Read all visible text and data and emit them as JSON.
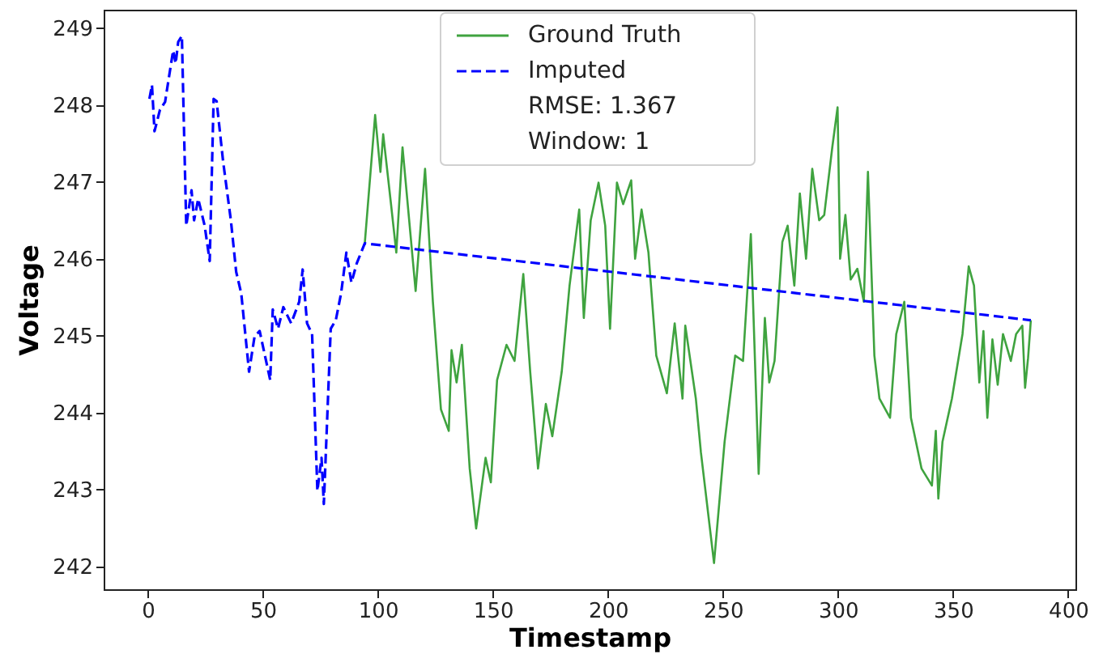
{
  "chart_data": {
    "type": "line",
    "xlabel": "Timestamp",
    "ylabel": "Voltage",
    "xlim": [
      -19.2,
      403.2
    ],
    "ylim": [
      241.7,
      249.24
    ],
    "xticks": [
      0,
      50,
      100,
      150,
      200,
      250,
      300,
      350,
      400
    ],
    "yticks": [
      242,
      243,
      244,
      245,
      246,
      247,
      248,
      249
    ],
    "legend": "top",
    "annotations": [
      "RMSE: 1.367",
      "Window: 1"
    ],
    "series": [
      {
        "name": "Ground Truth",
        "color": "#3fa33f",
        "line_style": "solid",
        "x": [
          94.3,
          98.8,
          101.1,
          102.3,
          105.7,
          108,
          110.7,
          116.4,
          120.5,
          123.9,
          127.4,
          130.8,
          132,
          134.2,
          136.5,
          139.9,
          142.7,
          146.8,
          149.1,
          151.8,
          155.9,
          159.4,
          163.2,
          166.2,
          169.6,
          173,
          175.8,
          179.9,
          183.3,
          187.5,
          189.5,
          192.5,
          195.9,
          198.8,
          200.9,
          203.9,
          206.6,
          210.1,
          211.8,
          214.6,
          217.6,
          221,
          225.6,
          229,
          232.4,
          233.6,
          238.2,
          240.4,
          246.1,
          250.7,
          255.3,
          258.7,
          262.1,
          265.5,
          268.2,
          270.1,
          272.4,
          275.8,
          278.1,
          281,
          283.4,
          286.1,
          288.8,
          291.8,
          294,
          297.5,
          299.8,
          300.9,
          303.2,
          305.5,
          308.4,
          311.2,
          313,
          315.8,
          318,
          322.6,
          325.3,
          328.8,
          331.7,
          336.3,
          340.8,
          342.5,
          343.6,
          345.4,
          349.5,
          354.1,
          356.8,
          359.1,
          361.4,
          363.2,
          364.9,
          367.1,
          369.4,
          371.7,
          375.1,
          377.4,
          380.1,
          381.3,
          382.6,
          383.8
        ],
        "values": [
          246.2,
          247.87,
          247.13,
          247.62,
          246.71,
          246.08,
          247.45,
          245.58,
          247.17,
          245.44,
          244.04,
          243.76,
          244.81,
          244.39,
          244.88,
          243.27,
          242.49,
          243.41,
          243.09,
          244.42,
          244.88,
          244.67,
          245.8,
          244.53,
          243.27,
          244.11,
          243.69,
          244.53,
          245.65,
          246.64,
          245.23,
          246.5,
          246.99,
          246.43,
          245.09,
          246.99,
          246.71,
          247.02,
          246.0,
          246.64,
          246.08,
          244.74,
          244.25,
          245.16,
          244.18,
          245.13,
          244.18,
          243.48,
          242.04,
          243.62,
          244.74,
          244.67,
          246.32,
          243.2,
          245.23,
          244.39,
          244.67,
          246.22,
          246.43,
          245.65,
          246.85,
          246.0,
          247.17,
          246.5,
          246.57,
          247.45,
          247.97,
          246.0,
          246.57,
          245.73,
          245.87,
          245.44,
          247.13,
          244.74,
          244.18,
          243.93,
          245.02,
          245.44,
          243.93,
          243.27,
          243.05,
          243.76,
          242.88,
          243.62,
          244.18,
          245.02,
          245.9,
          245.65,
          244.39,
          245.06,
          243.93,
          244.95,
          244.36,
          245.02,
          244.67,
          245.02,
          245.13,
          244.32,
          244.71,
          245.2
        ]
      },
      {
        "name": "Imputed",
        "color": "#0000ff",
        "line_style": "dashed",
        "x": [
          0.7,
          1.8,
          2.9,
          5.3,
          7.5,
          11,
          12.1,
          13.2,
          14.8,
          15.5,
          16.7,
          19,
          20.1,
          21.9,
          24.7,
          26.9,
          28.6,
          29.9,
          32.7,
          36.1,
          38.4,
          40.6,
          44,
          46.4,
          48.6,
          50.9,
          53.2,
          54.3,
          56.6,
          58.9,
          62.3,
          65.8,
          67.3,
          69.2,
          71.4,
          73.7,
          75.5,
          76.5,
          79.5,
          81.7,
          84,
          86.3,
          88.5,
          90.8,
          94.3,
          383.8
        ],
        "values": [
          248.08,
          248.26,
          247.66,
          247.94,
          248.04,
          248.71,
          248.54,
          248.82,
          248.9,
          247.97,
          246.43,
          246.89,
          246.5,
          246.78,
          246.43,
          245.97,
          248.08,
          248.05,
          247.27,
          246.5,
          245.83,
          245.55,
          244.53,
          244.99,
          245.06,
          244.74,
          244.42,
          245.34,
          245.09,
          245.37,
          245.16,
          245.44,
          245.86,
          245.16,
          245.02,
          242.98,
          243.41,
          242.81,
          245.09,
          245.2,
          245.55,
          246.08,
          245.69,
          245.94,
          246.2,
          245.2
        ]
      }
    ]
  }
}
